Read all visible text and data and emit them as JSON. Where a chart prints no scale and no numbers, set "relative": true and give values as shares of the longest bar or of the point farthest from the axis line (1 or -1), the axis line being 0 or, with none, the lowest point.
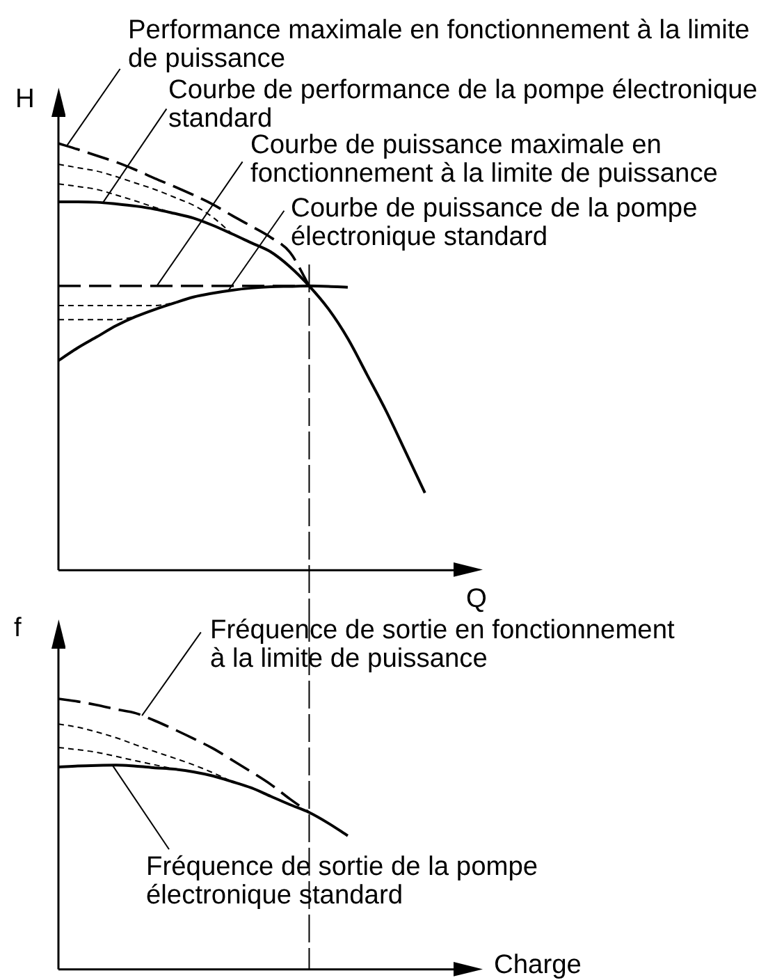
{
  "chart_data": [
    {
      "type": "line",
      "xlabel": "Q",
      "ylabel": "H",
      "relative": true,
      "marker": "none",
      "categories": [
        null,
        null,
        null,
        null,
        null,
        null,
        null,
        null,
        null,
        null,
        null,
        null,
        null,
        null,
        null,
        null,
        null,
        null,
        null,
        null,
        null,
        null,
        null
      ],
      "series": [
        {
          "name": "Performance maximale en fonctionnement à la limite de puissance",
          "color": "#000000",
          "line_style": "dashed",
          "values": [
            1,
            0.986,
            0.971,
            0.956,
            0.938,
            0.918,
            0.899,
            0.879,
            0.857,
            0.831,
            0.806,
            0.78,
            0.745,
            0.666,
            null,
            null,
            null,
            null,
            null,
            null,
            null,
            null,
            null
          ]
        },
        {
          "name": "Courbe de performance de la pompe électronique standard",
          "color": "#000000",
          "line_style": "solid",
          "values": [
            0.863,
            0.863,
            0.862,
            0.858,
            0.853,
            0.846,
            0.836,
            0.825,
            0.808,
            0.788,
            0.767,
            0.746,
            0.711,
            0.666,
            0.612,
            0.543,
            0.458,
            0.372,
            0.277,
            0.181,
            null,
            null,
            null
          ]
        },
        {
          "name": "Courbe de puissance maximale en fonctionnement à la limite de puissance",
          "color": "#000000",
          "line_style": "dashed",
          "values": [
            0.666,
            0.666,
            0.666,
            0.666,
            0.666,
            0.666,
            0.666,
            0.666,
            0.666,
            0.666,
            0.666,
            0.666,
            0.666,
            0.666,
            null,
            null,
            null,
            null,
            null,
            null,
            null,
            null,
            null
          ]
        },
        {
          "name": "Courbe de puissance de la pompe électronique standard",
          "color": "#000000",
          "line_style": "solid",
          "values": [
            0.491,
            0.521,
            0.547,
            0.573,
            0.594,
            0.611,
            0.626,
            0.64,
            0.649,
            0.656,
            0.661,
            0.664,
            0.665,
            0.666,
            0.665,
            0.663,
            null,
            null,
            null,
            null,
            null,
            null,
            null
          ]
        },
        {
          "color": "#000000",
          "line_style": "dotted",
          "values": [
            0.951,
            0.943,
            0.935,
            0.922,
            0.907,
            0.892,
            0.874,
            0.855,
            0.827,
            0.788,
            null,
            null,
            null,
            null,
            null,
            null,
            null,
            null,
            null,
            null,
            null,
            null,
            null
          ]
        },
        {
          "color": "#000000",
          "line_style": "dotted",
          "values": [
            0.905,
            0.899,
            0.892,
            0.879,
            0.865,
            0.85,
            0.836,
            null,
            null,
            null,
            null,
            null,
            null,
            null,
            null,
            null,
            null,
            null,
            null,
            null,
            null,
            null,
            null
          ]
        },
        {
          "color": "#000000",
          "line_style": "dotted",
          "values": [
            0.62,
            0.62,
            0.62,
            0.62,
            0.62,
            0.62,
            0.626,
            null,
            null,
            null,
            null,
            null,
            null,
            null,
            null,
            null,
            null,
            null,
            null,
            null,
            null,
            null,
            null
          ]
        },
        {
          "color": "#000000",
          "line_style": "dotted",
          "values": [
            0.587,
            0.587,
            0.587,
            0.587,
            0.594,
            null,
            null,
            null,
            null,
            null,
            null,
            null,
            null,
            null,
            null,
            null,
            null,
            null,
            null,
            null,
            null,
            null,
            null
          ]
        }
      ]
    },
    {
      "type": "line",
      "xlabel": "Charge",
      "ylabel": "f",
      "relative": true,
      "marker": "none",
      "categories": [
        null,
        null,
        null,
        null,
        null,
        null,
        null,
        null,
        null,
        null,
        null,
        null,
        null,
        null,
        null,
        null,
        null,
        null,
        null,
        null,
        null,
        null,
        null
      ],
      "series": [
        {
          "name": "Fréquence de sortie en fonctionnement à la limite de puissance",
          "color": "#000000",
          "line_style": "dashed",
          "values": [
            1,
            0.99,
            0.977,
            0.961,
            0.947,
            0.919,
            0.887,
            0.853,
            0.817,
            0.774,
            0.73,
            0.684,
            0.63,
            0.58,
            null,
            null,
            null,
            null,
            null,
            null,
            null,
            null,
            null
          ]
        },
        {
          "name": "Fréquence de sortie de la pompe électronique standard",
          "color": "#000000",
          "line_style": "solid",
          "values": [
            0.748,
            0.752,
            0.754,
            0.755,
            0.751,
            0.745,
            0.74,
            0.73,
            0.715,
            0.694,
            0.671,
            0.64,
            0.609,
            0.58,
            0.54,
            0.494,
            null,
            null,
            null,
            null,
            null,
            null,
            null
          ]
        },
        {
          "color": "#000000",
          "line_style": "dotted",
          "values": [
            0.907,
            0.895,
            0.877,
            0.856,
            0.83,
            0.805,
            0.781,
            0.756,
            0.727,
            0.694,
            null,
            null,
            null,
            null,
            null,
            null,
            null,
            null,
            null,
            null,
            null,
            null,
            null
          ]
        },
        {
          "color": "#000000",
          "line_style": "dotted",
          "values": [
            0.82,
            0.812,
            0.802,
            0.787,
            0.771,
            0.756,
            0.74,
            null,
            null,
            null,
            null,
            null,
            null,
            null,
            null,
            null,
            null,
            null,
            null,
            null,
            null,
            null,
            null
          ]
        }
      ]
    }
  ]
}
